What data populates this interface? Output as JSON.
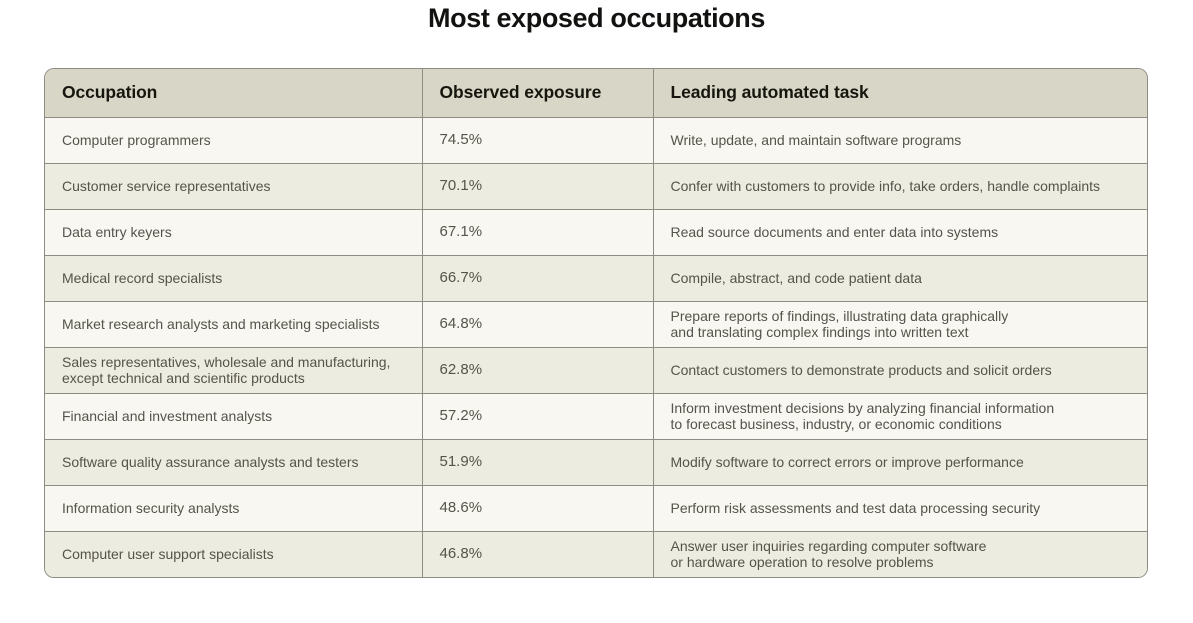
{
  "title": "Most exposed occupations",
  "chart_data": {
    "type": "table",
    "title": "Most exposed occupations",
    "columns": [
      "Occupation",
      "Observed exposure",
      "Leading automated task"
    ],
    "exposure_values_percent": [
      74.5,
      70.1,
      67.1,
      66.7,
      64.8,
      62.8,
      57.2,
      51.9,
      48.6,
      46.8
    ],
    "rows": [
      [
        "Computer programmers",
        "74.5%",
        "Write, update, and maintain software programs"
      ],
      [
        "Customer service representatives",
        "70.1%",
        "Confer with customers to provide info, take orders, handle complaints"
      ],
      [
        "Data entry keyers",
        "67.1%",
        "Read source documents and enter data into systems"
      ],
      [
        "Medical record specialists",
        "66.7%",
        "Compile, abstract, and code patient data"
      ],
      [
        "Market research analysts and marketing specialists",
        "64.8%",
        "Prepare reports of findings, illustrating data graphically\nand translating complex findings into written text"
      ],
      [
        "Sales representatives, wholesale and manufacturing,\nexcept technical and scientific products",
        "62.8%",
        "Contact customers to demonstrate products and solicit orders"
      ],
      [
        "Financial and investment analysts",
        "57.2%",
        "Inform investment decisions by analyzing financial information\nto forecast business, industry, or economic conditions"
      ],
      [
        "Software quality assurance analysts and testers",
        "51.9%",
        "Modify software to correct errors or improve performance"
      ],
      [
        "Information security analysts",
        "48.6%",
        "Perform risk assessments and test data processing security"
      ],
      [
        "Computer user support specialists",
        "46.8%",
        "Answer user inquiries regarding computer software\nor hardware operation to resolve problems"
      ]
    ],
    "layout": {
      "grid": "full cell borders",
      "header_background": "#d8d6c6",
      "row_background_odd": "#f8f7f1",
      "row_background_even": "#edece0",
      "border_color": "#8e8d84",
      "text_color": "#55534a",
      "header_text_color": "#16160f",
      "page_background": "#ffffff"
    }
  }
}
